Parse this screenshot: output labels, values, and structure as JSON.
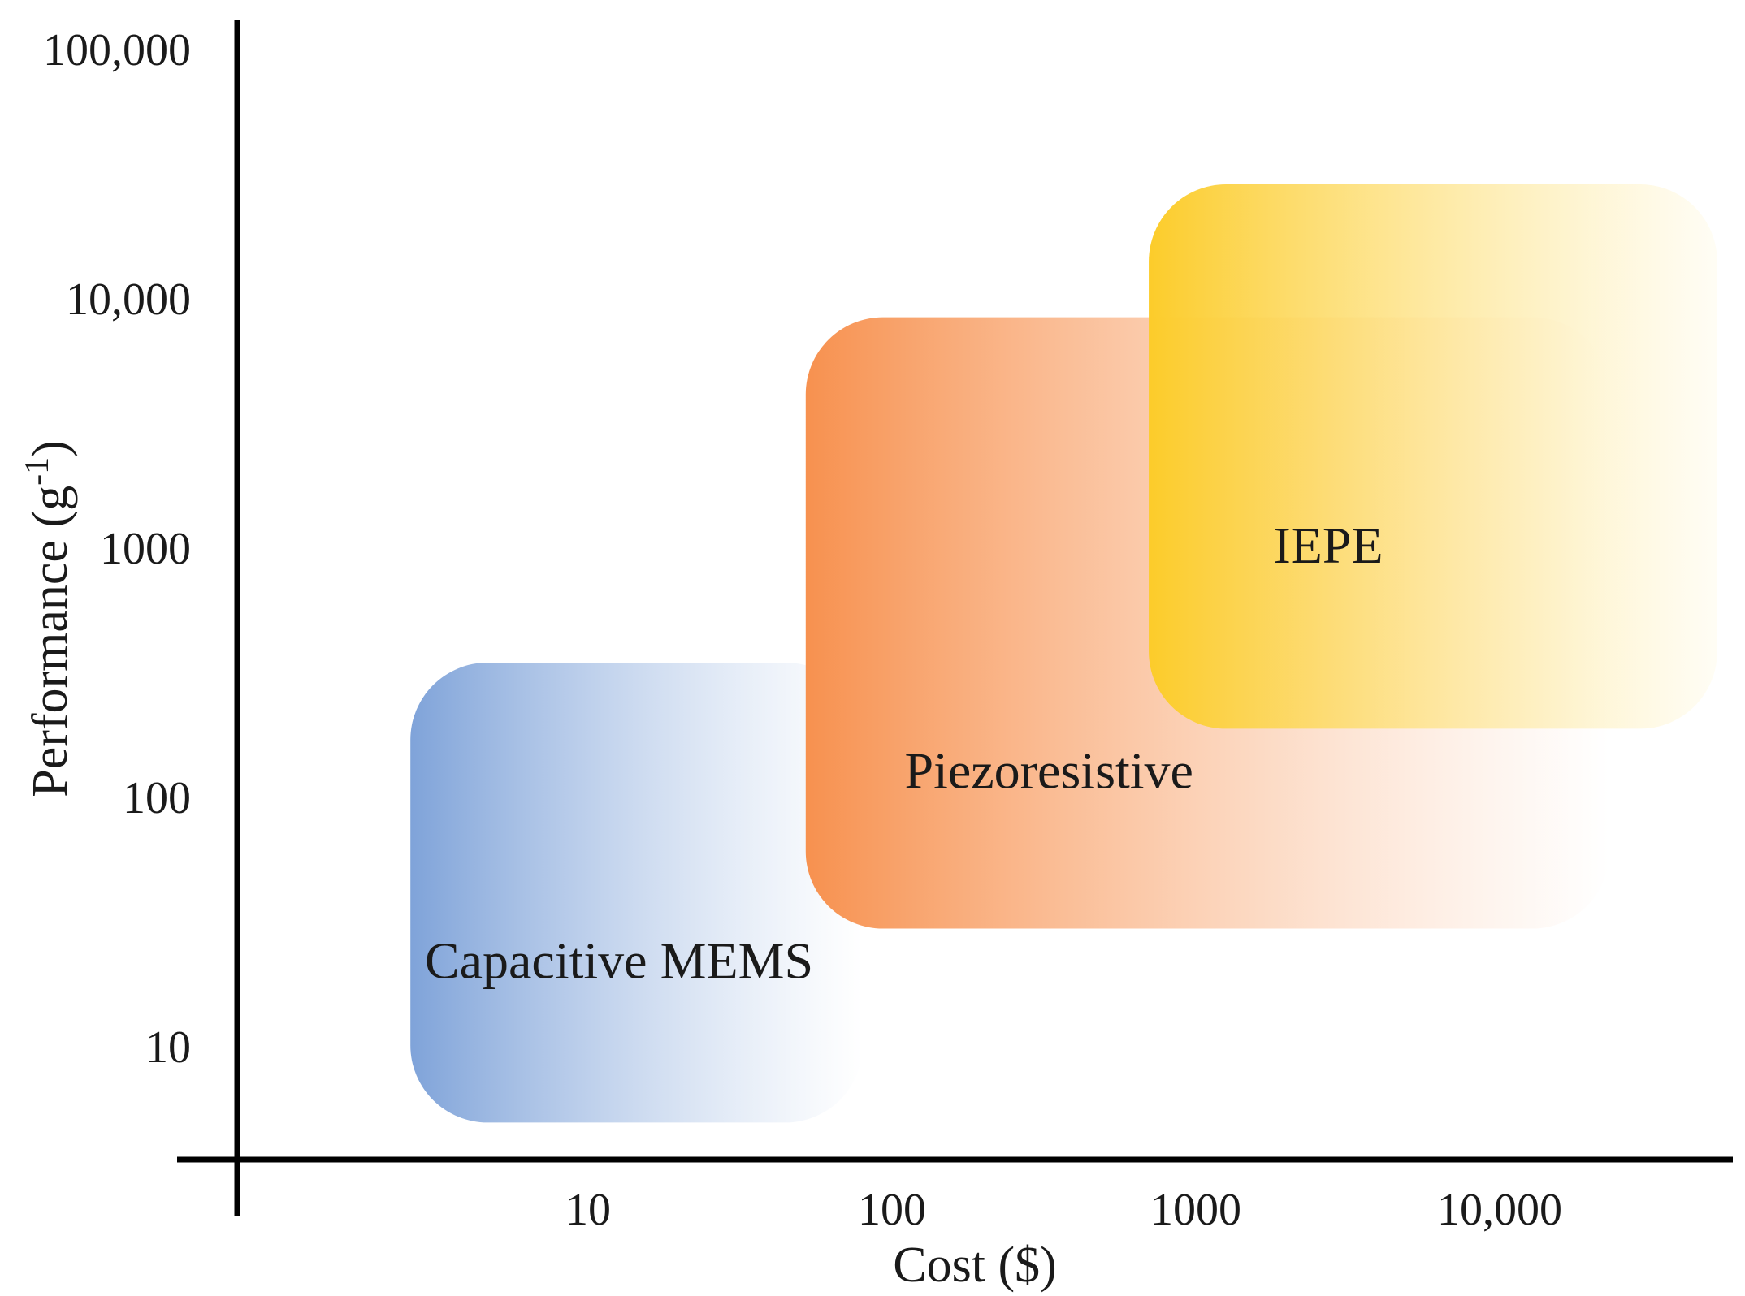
{
  "chart_data": {
    "type": "range-regions",
    "title": "",
    "xlabel": "Cost ($)",
    "ylabel": {
      "base": "Performance (g",
      "superscript": "-1",
      "suffix": ")"
    },
    "x_scale": "log",
    "y_scale": "log",
    "x_ticks": [
      {
        "value": 10,
        "label": "10"
      },
      {
        "value": 100,
        "label": "100"
      },
      {
        "value": 1000,
        "label": "1000"
      },
      {
        "value": 10000,
        "label": "10,000"
      }
    ],
    "y_ticks": [
      {
        "value": 10,
        "label": "10"
      },
      {
        "value": 100,
        "label": "100"
      },
      {
        "value": 1000,
        "label": "1000"
      },
      {
        "value": 10000,
        "label": "10,000"
      },
      {
        "value": 100000,
        "label": "100,000"
      }
    ],
    "regions": [
      {
        "name": "Capacitive MEMS",
        "x_range": [
          2.6,
          80
        ],
        "y_range": [
          5,
          350
        ],
        "label_at": [
          2.9,
          19
        ],
        "color_start": "#7fa3d9",
        "color_end": "#ffffff"
      },
      {
        "name": "Piezoresistive",
        "x_range": [
          52,
          23000
        ],
        "y_range": [
          30,
          8500
        ],
        "label_at": [
          110,
          110
        ],
        "color_start": "#f7914f",
        "color_end": "#ffffff"
      },
      {
        "name": "IEPE",
        "x_range": [
          700,
          52000
        ],
        "y_range": [
          190,
          29000
        ],
        "label_at": [
          1800,
          880
        ],
        "color_start": "#fccc2a",
        "color_end": "#fffcee"
      }
    ]
  }
}
